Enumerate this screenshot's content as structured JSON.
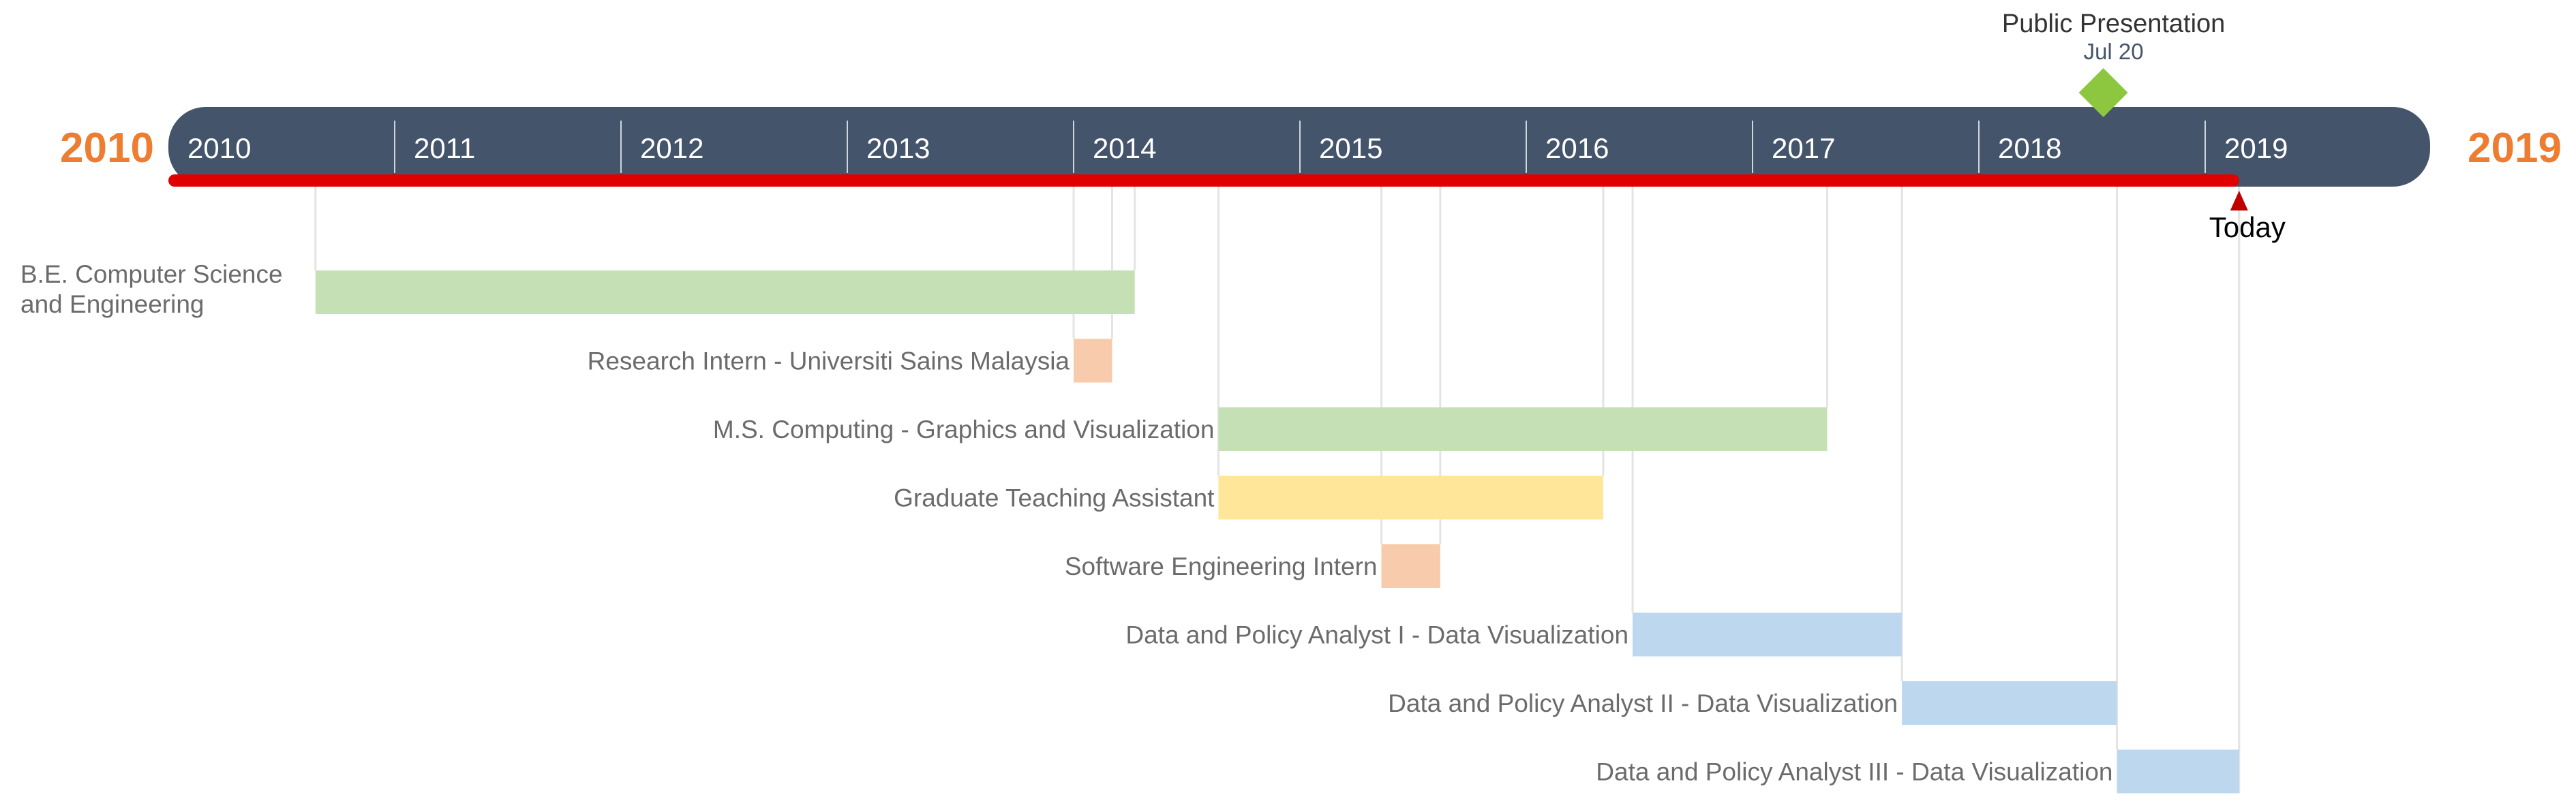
{
  "chart_data": {
    "type": "gantt",
    "start_label": "2010",
    "end_label": "2019",
    "year_ticks": [
      "2010",
      "2011",
      "2012",
      "2013",
      "2014",
      "2015",
      "2016",
      "2017",
      "2018",
      "2019"
    ],
    "x_range": [
      2010.0,
      2020.0
    ],
    "today": {
      "label": "Today",
      "date": 2019.15
    },
    "milestone": {
      "title": "Public Presentation",
      "date_label": "Jul 20",
      "date": 2018.55,
      "color": "#8DC63F"
    },
    "tasks": [
      {
        "name": "B.E. Computer Science\nand Engineering",
        "start": 2010.65,
        "end": 2014.27,
        "color": "#C5E0B4"
      },
      {
        "name": "Research Intern - Universiti Sains Malaysia",
        "start": 2014.0,
        "end": 2014.17,
        "color": "#F8CBAD"
      },
      {
        "name": "M.S. Computing - Graphics and Visualization",
        "start": 2014.64,
        "end": 2017.33,
        "color": "#C5E0B4"
      },
      {
        "name": "Graduate Teaching Assistant",
        "start": 2014.64,
        "end": 2016.34,
        "color": "#FFE699"
      },
      {
        "name": "Software Engineering Intern",
        "start": 2015.36,
        "end": 2015.62,
        "color": "#F8CBAD"
      },
      {
        "name": "Data and Policy Analyst I - Data Visualization",
        "start": 2016.47,
        "end": 2017.66,
        "color": "#BDD7EE"
      },
      {
        "name": "Data and Policy Analyst II - Data Visualization",
        "start": 2017.66,
        "end": 2018.61,
        "color": "#BDD7EE"
      },
      {
        "name": "Data and Policy Analyst III - Data Visualization",
        "start": 2018.61,
        "end": 2019.15,
        "color": "#BDD7EE"
      }
    ],
    "colors": {
      "band": "#44546A",
      "progress": "#E00000",
      "end_labels": "#ED7D31",
      "today_marker": "#C00000",
      "guide_lines": "#E4E4E4"
    }
  }
}
